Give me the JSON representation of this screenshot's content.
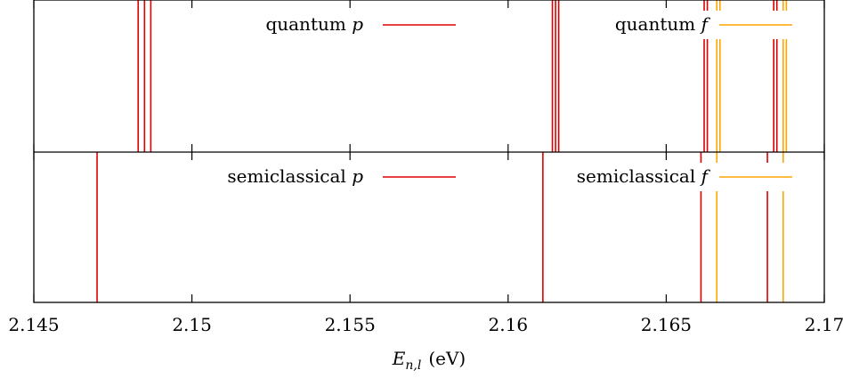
{
  "chart_data": {
    "type": "spectral-lines",
    "xlabel": {
      "main": "E",
      "sub": "n,l",
      "unit": "(eV)"
    },
    "xlim": [
      2.145,
      2.17
    ],
    "xticks": [
      "2.145",
      "2.15",
      "2.155",
      "2.16",
      "2.165",
      "2.17"
    ],
    "colors": {
      "p": "#dd0000",
      "f": "#ffa500"
    },
    "panels": [
      {
        "id": "quantum",
        "legend": [
          {
            "label": "quantum",
            "symbol": "p",
            "series": "p"
          },
          {
            "label": "quantum",
            "symbol": "f",
            "series": "f"
          }
        ],
        "series": [
          {
            "name": "p",
            "x": [
              2.1483,
              2.1485,
              2.1487,
              2.1614,
              2.1615,
              2.1616,
              2.1662,
              2.1663,
              2.1684,
              2.1685
            ]
          },
          {
            "name": "f",
            "x": [
              2.1666,
              2.1667,
              2.1687,
              2.1688
            ]
          }
        ]
      },
      {
        "id": "semiclassical",
        "legend": [
          {
            "label": "semiclassical",
            "symbol": "p",
            "series": "p"
          },
          {
            "label": "semiclassical",
            "symbol": "f",
            "series": "f"
          }
        ],
        "series": [
          {
            "name": "p",
            "x": [
              2.147,
              2.1611,
              2.1661,
              2.1682
            ]
          },
          {
            "name": "f",
            "x": [
              2.1666,
              2.1687
            ]
          }
        ]
      }
    ]
  }
}
